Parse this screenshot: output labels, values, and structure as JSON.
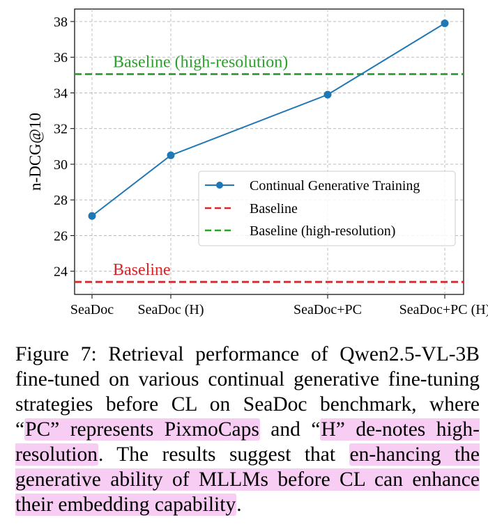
{
  "chart_data": {
    "type": "line",
    "categories": [
      "SeaDoc",
      "SeaDoc (H)",
      "SeaDoc+PC",
      "SeaDoc+PC (H)"
    ],
    "series": [
      {
        "name": "Continual Generative Training",
        "values": [
          27.1,
          30.5,
          33.9,
          37.9
        ],
        "color": "#1f77b4"
      }
    ],
    "reference_lines": [
      {
        "name": "Baseline",
        "value": 23.4,
        "color": "#d62728",
        "label": "Baseline"
      },
      {
        "name": "Baseline (high-resolution)",
        "value": 35.05,
        "color": "#2ca02c",
        "label": "Baseline (high-resolution)"
      }
    ],
    "ylabel": "n-DCG@10",
    "xlabel": "",
    "ylim": [
      22.7,
      38.7
    ],
    "yticks": [
      24,
      26,
      28,
      30,
      32,
      34,
      36,
      38
    ],
    "grid": true,
    "legend_position": "center-right"
  },
  "caption": {
    "parts": [
      "Figure 7: Retrieval performance of Qwen2.5-VL-3B fine-tuned on various continual generative fine-tuning strategies before CL on SeaDoc benchmark, where “",
      "PC” represents PixmoCaps",
      " and “",
      "H” de-notes high-resolution",
      ". The results suggest that ",
      "en-hancing the generative ability of MLLMs before CL can enhance their embedding capability",
      "."
    ]
  }
}
